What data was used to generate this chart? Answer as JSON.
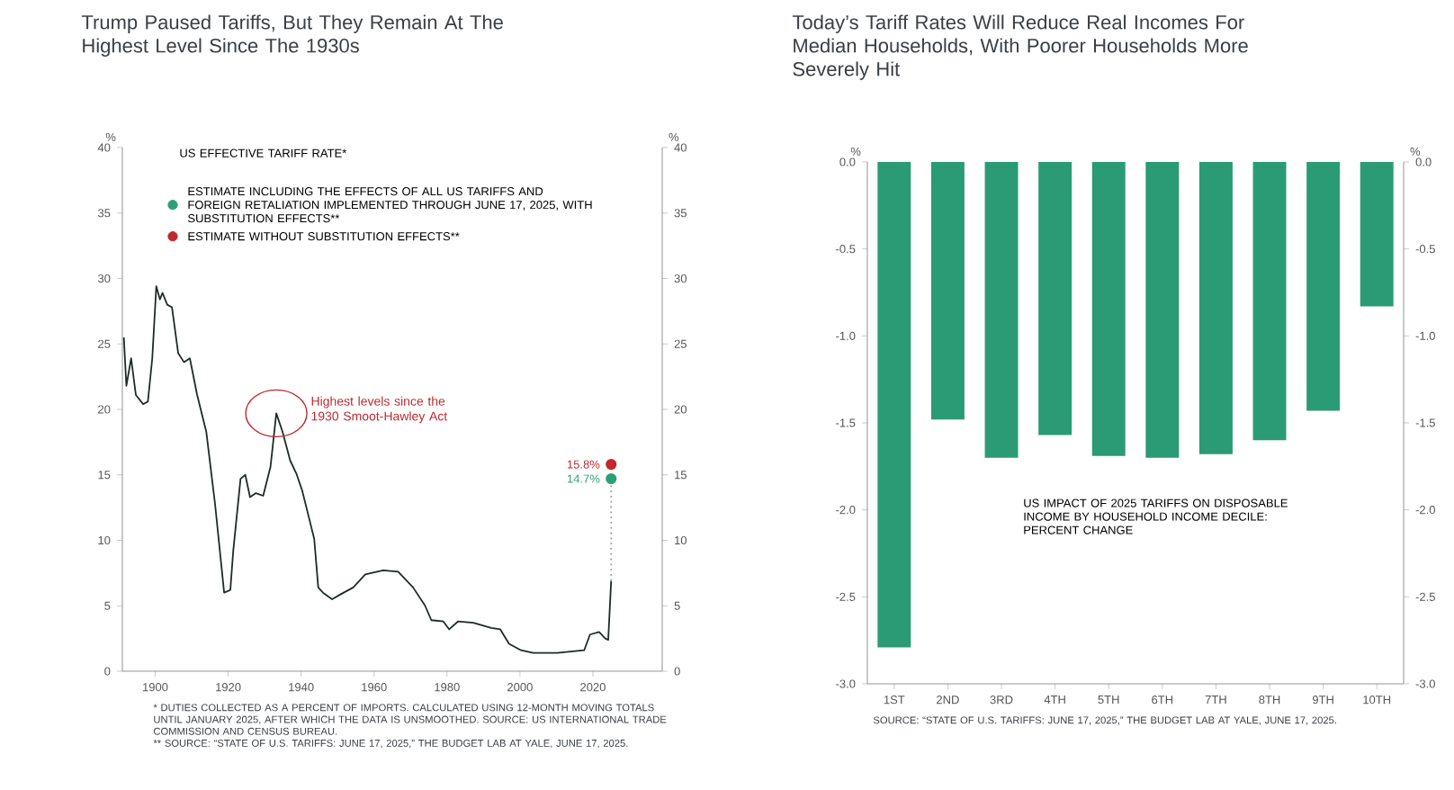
{
  "chart_data": [
    {
      "type": "line",
      "title": "Trump Paused Tariffs, But They Remain At The Highest Level Since The 1930s",
      "xlim": [
        1891,
        2039
      ],
      "xticks": [
        1900,
        1920,
        1940,
        1960,
        1980,
        2000,
        2020
      ],
      "ylim": [
        0,
        40
      ],
      "yticks": [
        0,
        5,
        10,
        15,
        20,
        25,
        30,
        35,
        40
      ],
      "ylabel": "%",
      "y2lim": [
        0,
        40
      ],
      "y2ticks": [
        0,
        5,
        10,
        15,
        20,
        25,
        30,
        35,
        40
      ],
      "y2label": "%",
      "legend": "top",
      "legend_title": "US EFFECTIVE TARIFF RATE*",
      "series": [
        {
          "color": "#1e2b27",
          "x": [
            1891.4,
            1892.1,
            1893.4,
            1894.7,
            1896.7,
            1898,
            1899.2,
            1900.3,
            1901.3,
            1902,
            1903.3,
            1904.6,
            1906.3,
            1907.9,
            1909.5,
            1911.5,
            1914,
            1916.4,
            1918.9,
            1920.6,
            1921.4,
            1923.4,
            1924.7,
            1926,
            1927.6,
            1929.6,
            1931.6,
            1933.2,
            1934.9,
            1937,
            1938.7,
            1940.3,
            1942,
            1943.6,
            1944.7,
            1946,
            1948.5,
            1951,
            1954.3,
            1957.6,
            1962.5,
            1966.6,
            1970.7,
            1974,
            1975.7,
            1979,
            1980.6,
            1983,
            1987.2,
            1992.1,
            1994.6,
            1997,
            2000.3,
            2003.6,
            2010.2,
            2017.6,
            2019.2,
            2021.7,
            2023.4,
            2024.2,
            2025
          ],
          "values": [
            25.5,
            21.8,
            23.9,
            21.1,
            20.4,
            20.6,
            23.9,
            29.4,
            28.4,
            28.9,
            28,
            27.8,
            24.3,
            23.6,
            23.9,
            21.1,
            18.3,
            12.8,
            6,
            6.2,
            9.2,
            14.7,
            15,
            13.3,
            13.6,
            13.4,
            15.6,
            19.7,
            18.3,
            16.1,
            15.1,
            13.8,
            11.9,
            10.1,
            6.4,
            6,
            5.5,
            5.9,
            6.4,
            7.4,
            7.7,
            7.6,
            6.4,
            5,
            3.9,
            3.8,
            3.2,
            3.8,
            3.7,
            3.3,
            3.2,
            2.1,
            1.6,
            1.4,
            1.4,
            1.6,
            2.8,
            3,
            2.5,
            2.4,
            6.9
          ]
        },
        {
          "type": "line",
          "line_style": "dotted",
          "color": "#9a9a9a",
          "x": [
            2025,
            2025
          ],
          "values": [
            6.9,
            14.7
          ]
        },
        {
          "type": "scatter",
          "marker": "circle",
          "name": "ESTIMATE INCLUDING THE EFFECTS OF ALL US TARIFFS AND FOREIGN RETALIATION IMPLEMENTED THROUGH JUNE 17, 2025, WITH SUBSTITUTION EFFECTS**",
          "color": "#2e9e78",
          "x": [
            2025
          ],
          "values": [
            14.7
          ],
          "value_labels": [
            "14.7%"
          ]
        },
        {
          "type": "scatter",
          "marker": "circle",
          "name": "ESTIMATE WITHOUT SUBSTITUTION EFFECTS**",
          "color": "#c1272d",
          "x": [
            2025
          ],
          "values": [
            15.8
          ],
          "value_labels": [
            "15.8%"
          ]
        }
      ],
      "annotations": [
        {
          "text": "Highest levels since the 1930 Smoot-Hawley Act",
          "x": 1933.2,
          "y": 19.7
        },
        "* DUTIES COLLECTED AS A PERCENT OF IMPORTS. CALCULATED USING 12-MONTH MOVING TOTALS UNTIL JANUARY 2025, AFTER WHICH THE DATA IS UNSMOOTHED. SOURCE: US INTERNATIONAL TRADE COMMISSION AND CENSUS BUREAU.",
        "** SOURCE: “STATE OF U.S. TARIFFS: JUNE 17, 2025,” THE BUDGET LAB AT YALE, JUNE 17, 2025."
      ]
    },
    {
      "type": "bar",
      "title": "Today’s Tariff Rates Will Reduce Real Incomes For Median Households, With Poorer Households More Severely Hit",
      "subtitle": "US IMPACT OF 2025 TARIFFS ON DISPOSABLE INCOME BY HOUSEHOLD INCOME DECILE: PERCENT CHANGE",
      "categories": [
        "1ST",
        "2ND",
        "3RD",
        "4TH",
        "5TH",
        "6TH",
        "7TH",
        "8TH",
        "9TH",
        "10TH"
      ],
      "values": [
        -2.79,
        -1.48,
        -1.7,
        -1.57,
        -1.69,
        -1.7,
        -1.68,
        -1.6,
        -1.43,
        -0.83
      ],
      "color": "#2a9b74",
      "ylim": [
        -3,
        0
      ],
      "yticks": [
        {
          "value": -3,
          "label": "-3.0"
        },
        -2.5,
        {
          "value": -2,
          "label": "-2.0"
        },
        -1.5,
        {
          "value": -1,
          "label": "-1.0"
        },
        -0.5,
        {
          "value": 0,
          "label": "0.0"
        }
      ],
      "ylabel": "%",
      "y2lim": [
        -3,
        0
      ],
      "y2ticks": [
        {
          "value": -3,
          "label": "-3.0"
        },
        -2.5,
        {
          "value": -2,
          "label": "-2.0"
        },
        -1.5,
        {
          "value": -1,
          "label": "-1.0"
        },
        -0.5,
        {
          "value": 0,
          "label": "0.0"
        }
      ],
      "y2label": "%",
      "annotations": [
        "SOURCE: “STATE OF U.S. TARIFFS: JUNE 17, 2025,” THE BUDGET LAB AT YALE, JUNE 17, 2025."
      ]
    }
  ]
}
